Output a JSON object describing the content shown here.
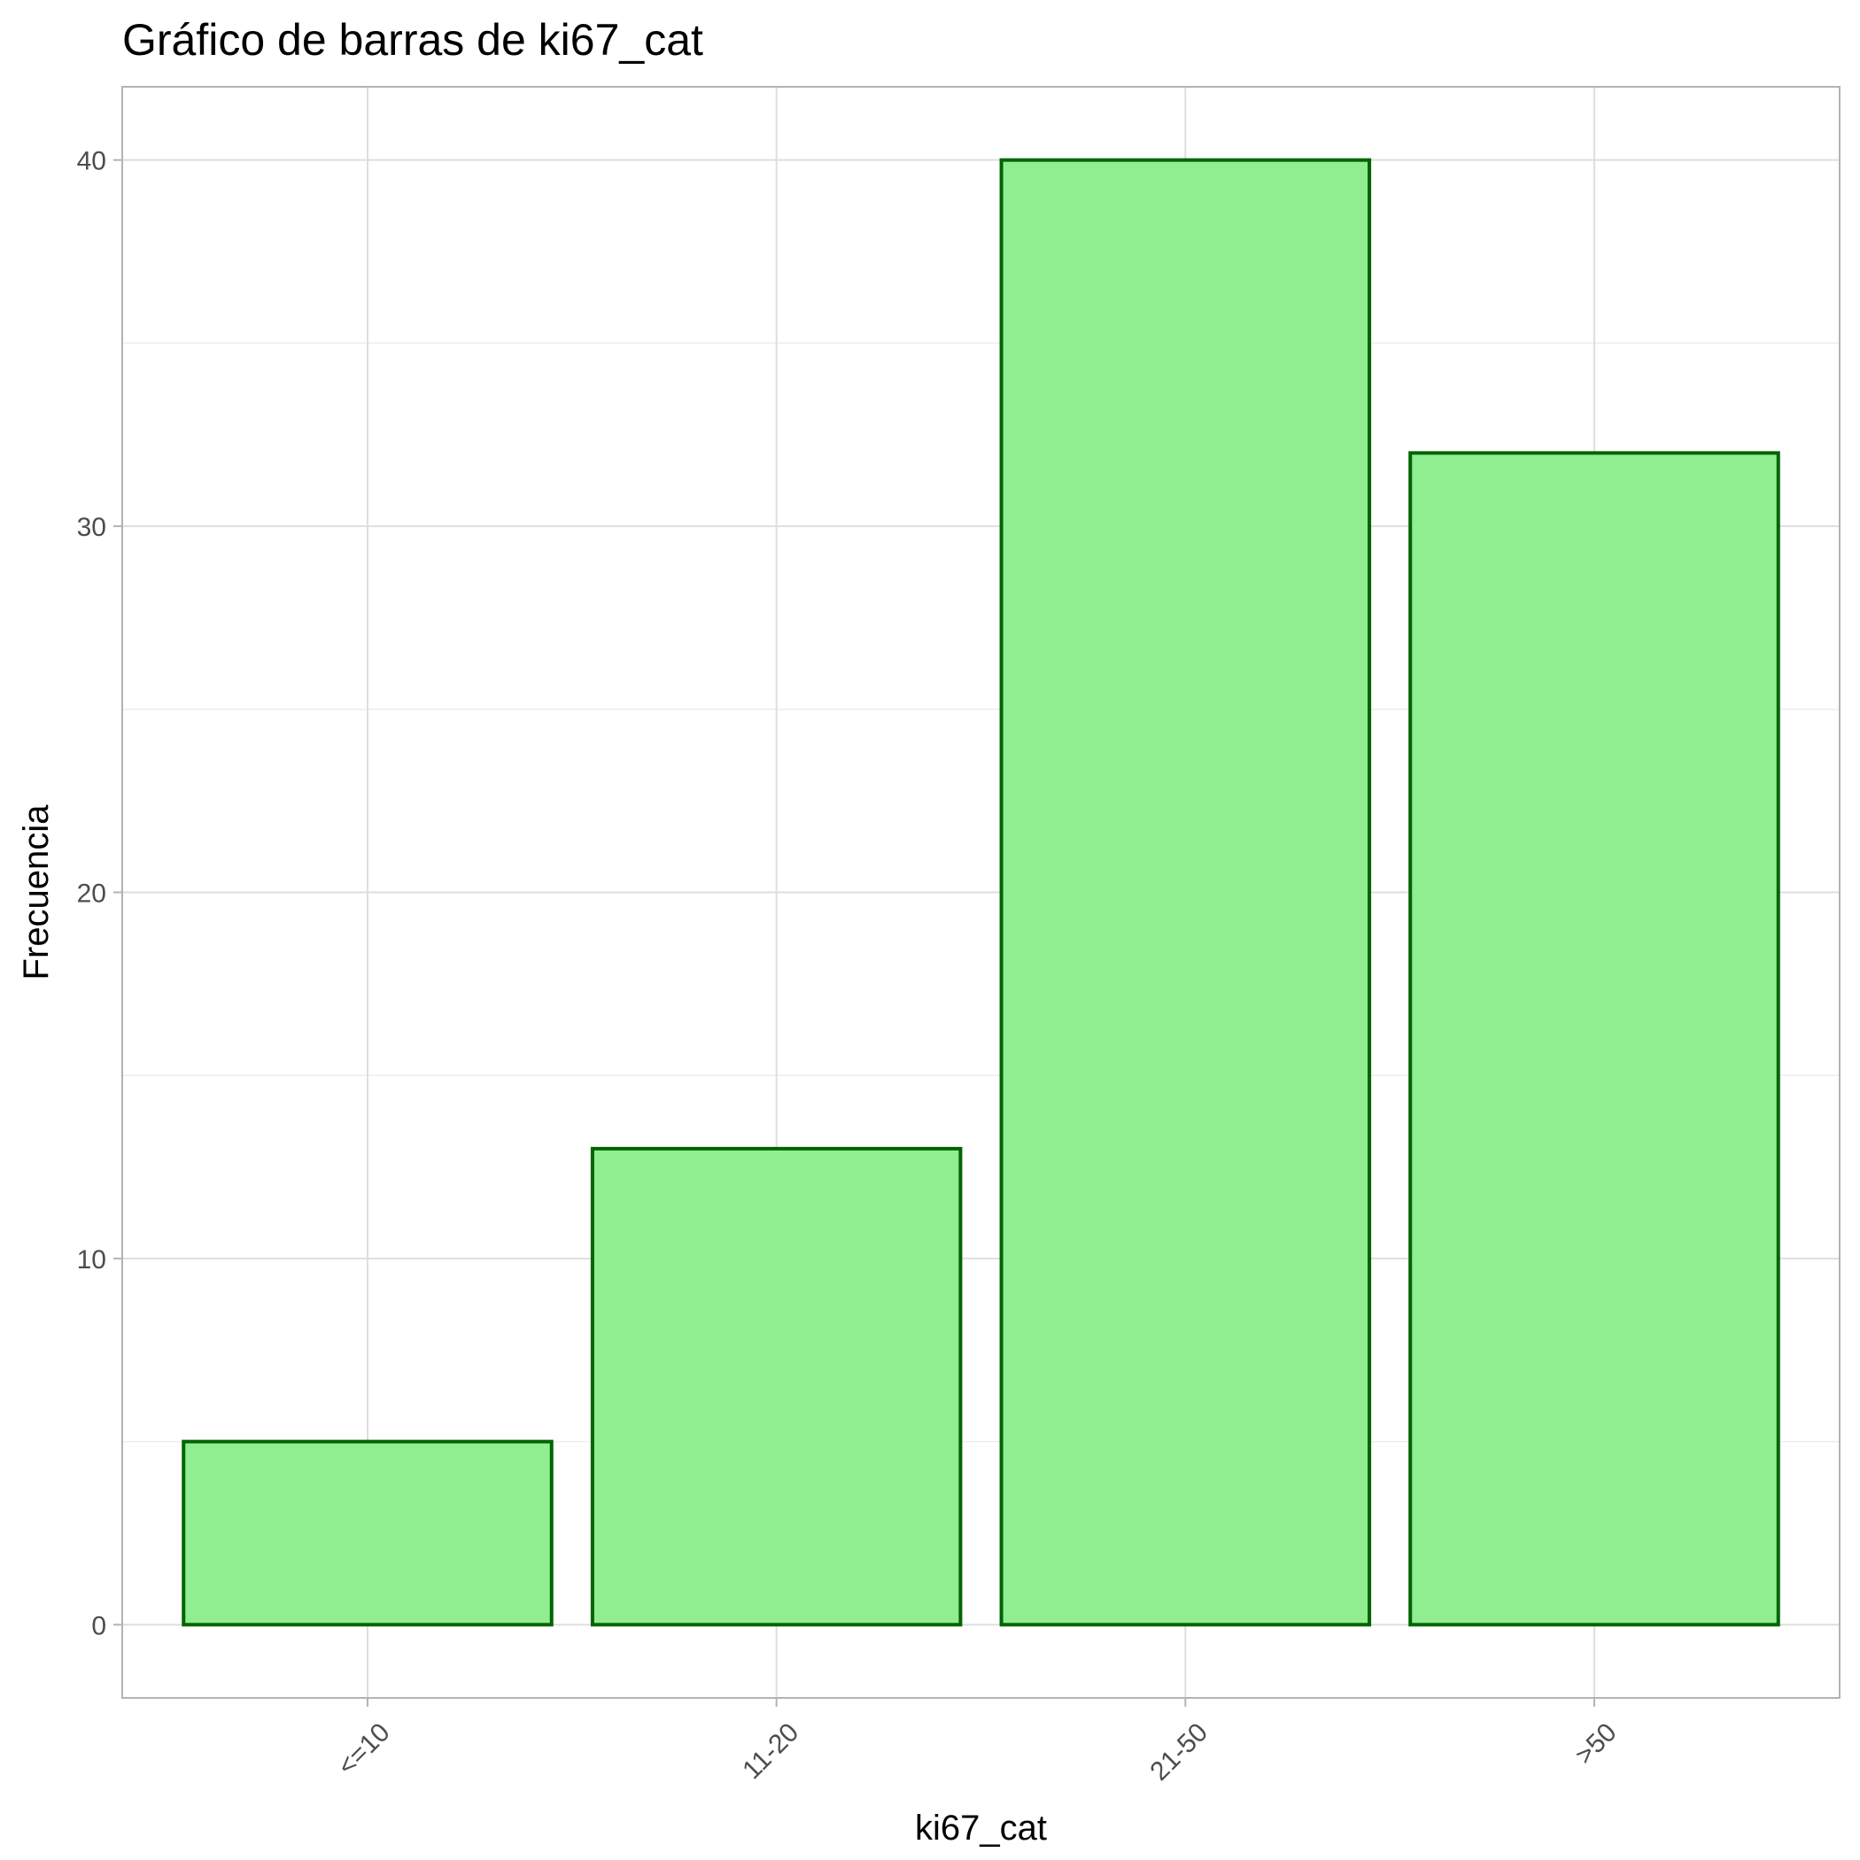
{
  "chart_data": {
    "type": "bar",
    "title": "Gráfico de barras de ki67_cat",
    "xlabel": "ki67_cat",
    "ylabel": "Frecuencia",
    "categories": [
      "<=10",
      "11-20",
      "21-50",
      ">50"
    ],
    "values": [
      5,
      13,
      40,
      32
    ],
    "ylim": [
      -2,
      42
    ],
    "yticks": [
      "0",
      "10",
      "20",
      "30",
      "40"
    ],
    "grid": true,
    "bar_fill": "#90EE90",
    "bar_outline": "#006400"
  }
}
